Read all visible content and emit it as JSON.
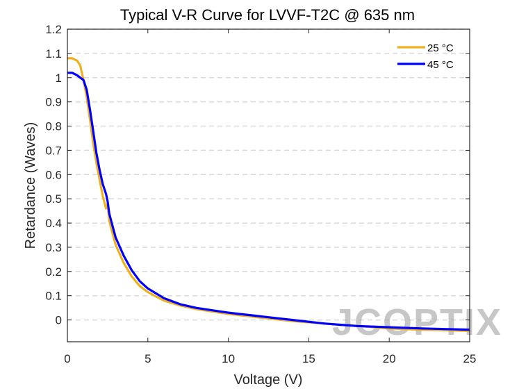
{
  "chart_data": {
    "type": "line",
    "title": "Typical V-R Curve for LVVF-T2C @ 635 nm",
    "xlabel": "Voltage (V)",
    "ylabel": "Retardance (Waves)",
    "xlim": [
      0,
      25
    ],
    "ylim": [
      -0.09,
      1.2
    ],
    "xticks": [
      0,
      5,
      10,
      15,
      20,
      25
    ],
    "yticks": [
      0,
      0.1,
      0.2,
      0.3,
      0.4,
      0.5,
      0.6,
      0.7,
      0.8,
      0.9,
      1,
      1.1,
      1.2
    ],
    "ytick_labels": [
      "0",
      "0.1",
      "0.2",
      "0.3",
      "0.4",
      "0.5",
      "0.6",
      "0.7",
      "0.8",
      "0.9",
      "1",
      "1.1",
      "1.2"
    ],
    "grid": "horizontal dashed",
    "legend_position": "top-right",
    "series": [
      {
        "name": "25 °C",
        "color": "#EDB120",
        "x": [
          0,
          0.3,
          0.6,
          0.8,
          1.0,
          1.2,
          1.4,
          1.6,
          1.8,
          2.0,
          2.2,
          2.4,
          2.5,
          2.6,
          2.8,
          3.0,
          3.5,
          4.0,
          4.5,
          5.0,
          6.0,
          7.0,
          8.0,
          9.0,
          10.0,
          12.0,
          14.0,
          16.0,
          18.0,
          20.0,
          22.0,
          25.0
        ],
        "y": [
          1.08,
          1.08,
          1.07,
          1.05,
          0.99,
          0.92,
          0.83,
          0.73,
          0.65,
          0.58,
          0.51,
          0.46,
          0.48,
          0.41,
          0.36,
          0.31,
          0.235,
          0.18,
          0.14,
          0.115,
          0.08,
          0.06,
          0.045,
          0.035,
          0.025,
          0.01,
          -0.005,
          -0.015,
          -0.025,
          -0.035,
          -0.04,
          -0.045
        ]
      },
      {
        "name": "45 °C",
        "color": "#0000FF",
        "x": [
          0,
          0.3,
          0.6,
          0.8,
          1.0,
          1.2,
          1.4,
          1.6,
          1.8,
          2.0,
          2.2,
          2.4,
          2.5,
          2.6,
          2.8,
          3.0,
          3.5,
          4.0,
          4.5,
          5.0,
          6.0,
          7.0,
          8.0,
          9.0,
          10.0,
          12.0,
          14.0,
          16.0,
          17.0,
          18.0,
          20.0,
          22.0,
          25.0
        ],
        "y": [
          1.02,
          1.02,
          1.01,
          1.0,
          0.99,
          0.95,
          0.87,
          0.78,
          0.69,
          0.62,
          0.56,
          0.52,
          0.49,
          0.44,
          0.39,
          0.34,
          0.265,
          0.205,
          0.16,
          0.13,
          0.09,
          0.065,
          0.05,
          0.04,
          0.03,
          0.015,
          0.0,
          -0.015,
          -0.02,
          -0.025,
          -0.03,
          -0.035,
          -0.04
        ]
      }
    ],
    "watermark": "JCOPTIX"
  }
}
